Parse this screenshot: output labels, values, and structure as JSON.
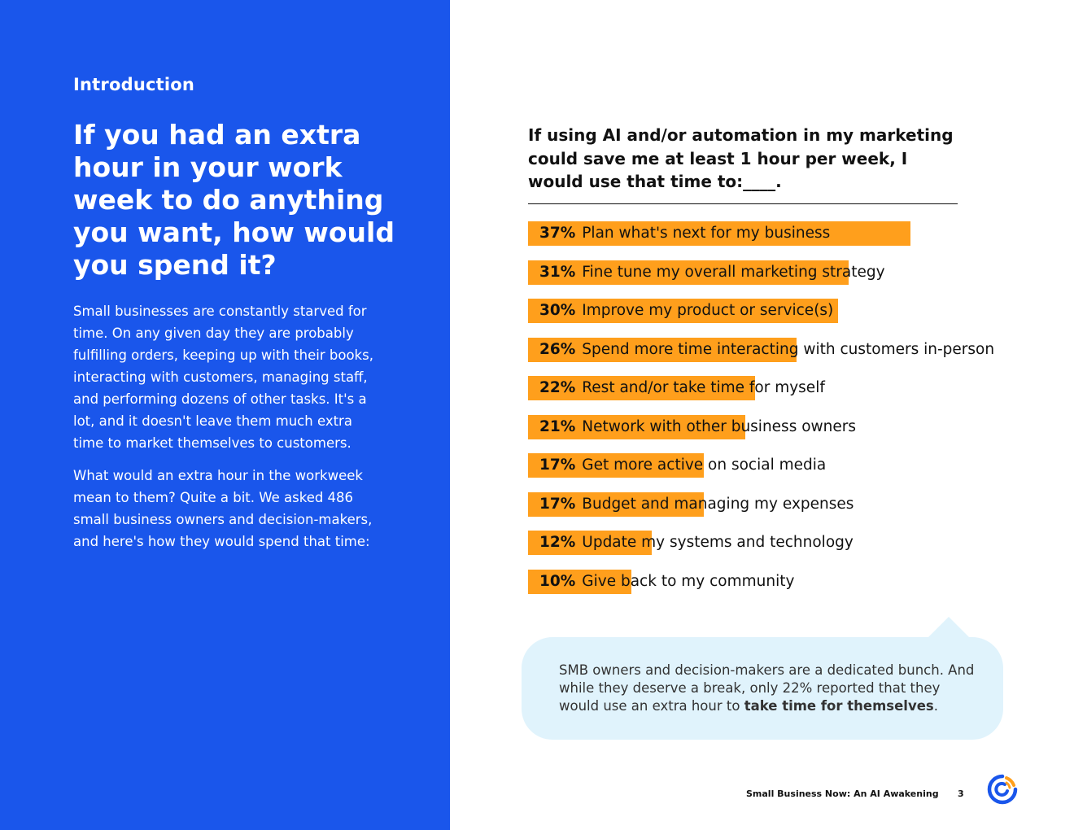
{
  "left_panel": {
    "section": "Introduction",
    "headline": "If you had an extra hour in your work week to do anything you want, how would you spend it?",
    "paragraph1": "Small businesses are constantly starved for time. On any given day they are probably fulfilling orders, keeping up with their books, interacting with customers, managing staff, and performing dozens of other tasks. It's a lot, and it doesn't leave them much extra time to market themselves to customers.",
    "paragraph2": "What would an extra hour in the workweek mean to them? Quite a bit. We asked 486 small business owners and decision-makers, and here's how they would spend that time:"
  },
  "chart_data": {
    "type": "bar",
    "orientation": "horizontal",
    "title": "If using AI and/or automation in my marketing could save me at least 1 hour per week, I would use that time to:____.",
    "categories": [
      "Plan what's next for my business",
      "Fine tune my overall marketing strategy",
      "Improve my product or service(s)",
      "Spend more time interacting with customers in-person",
      "Rest and/or take time for myself",
      "Network with other business owners",
      "Get more active on social media",
      "Budget and managing my expenses",
      "Update my systems and technology",
      "Give back to my community"
    ],
    "values": [
      37,
      31,
      30,
      26,
      22,
      21,
      17,
      17,
      12,
      10
    ],
    "value_labels": [
      "37%",
      "31%",
      "30%",
      "26%",
      "22%",
      "21%",
      "17%",
      "17%",
      "12%",
      "10%"
    ],
    "bar_color": "#ff9f1c",
    "grid": false
  },
  "callout": {
    "text_before": "SMB owners and decision-makers are a dedicated bunch. And while they deserve a break, only 22% reported that they would use an extra hour to ",
    "text_bold": "take time for themselves",
    "text_after": "."
  },
  "footer": {
    "title": "Small Business Now: An AI Awakening",
    "page": "3",
    "logo": "constant-contact-logo"
  },
  "colors": {
    "panel": "#1a56eb",
    "bar": "#ff9f1c",
    "callout": "#e0f3fc"
  }
}
